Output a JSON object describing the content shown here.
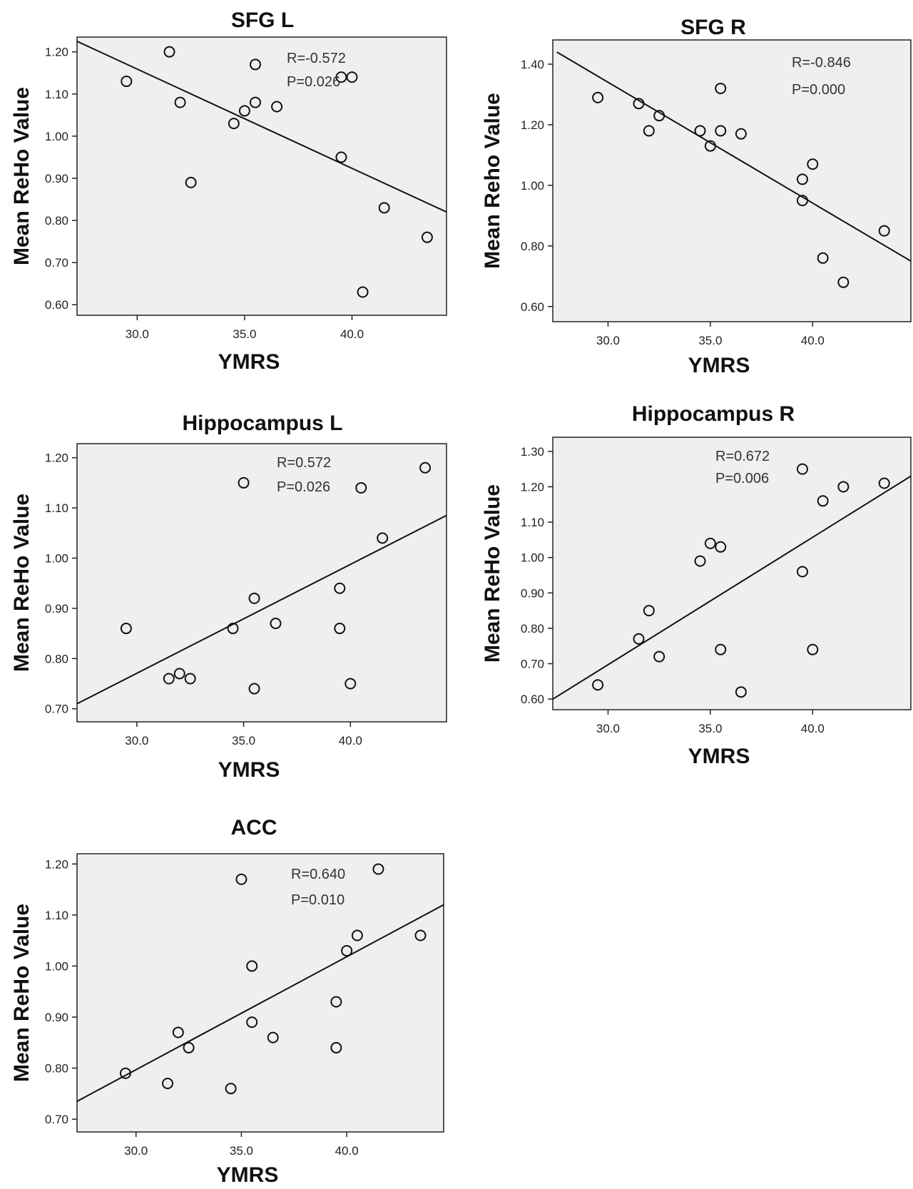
{
  "chart_data": [
    {
      "type": "scatter",
      "title": "SFG L",
      "xlabel": "YMRS",
      "ylabel": "Mean ReHo Value",
      "xlim": [
        27.2,
        44.4
      ],
      "ylim": [
        0.575,
        1.235
      ],
      "x_ticks": [
        "30.0",
        "35.0",
        "40.0"
      ],
      "y_ticks": [
        "0.60",
        "0.70",
        "0.80",
        "0.90",
        "1.00",
        "1.10",
        "1.20"
      ],
      "stat_r": "R=-0.572",
      "stat_p": "P=0.026",
      "fit_line": [
        [
          27.2,
          1.225
        ],
        [
          44.4,
          0.82
        ]
      ],
      "points": [
        [
          29.5,
          1.13
        ],
        [
          31.5,
          1.2
        ],
        [
          32.0,
          1.08
        ],
        [
          32.5,
          0.89
        ],
        [
          34.5,
          1.03
        ],
        [
          35.0,
          1.06
        ],
        [
          35.5,
          1.17
        ],
        [
          35.5,
          1.08
        ],
        [
          36.5,
          1.07
        ],
        [
          39.5,
          1.14
        ],
        [
          40.0,
          1.14
        ],
        [
          39.5,
          0.95
        ],
        [
          41.5,
          0.83
        ],
        [
          40.5,
          0.63
        ],
        [
          43.5,
          0.76
        ]
      ]
    },
    {
      "type": "scatter",
      "title": "SFG R",
      "xlabel": "YMRS",
      "ylabel": "Mean Reho Value",
      "xlim": [
        27.3,
        44.8
      ],
      "ylim": [
        0.55,
        1.48
      ],
      "x_ticks": [
        "30.0",
        "35.0",
        "40.0"
      ],
      "y_ticks": [
        "0.60",
        "0.80",
        "1.00",
        "1.20",
        "1.40"
      ],
      "stat_r": "R=-0.846",
      "stat_p": "P=0.000",
      "fit_line": [
        [
          27.5,
          1.44
        ],
        [
          44.8,
          0.75
        ]
      ],
      "points": [
        [
          29.5,
          1.29
        ],
        [
          31.5,
          1.27
        ],
        [
          32.0,
          1.18
        ],
        [
          32.5,
          1.23
        ],
        [
          34.5,
          1.18
        ],
        [
          35.0,
          1.13
        ],
        [
          35.5,
          1.32
        ],
        [
          35.5,
          1.18
        ],
        [
          36.5,
          1.17
        ],
        [
          39.5,
          1.02
        ],
        [
          40.0,
          1.07
        ],
        [
          39.5,
          0.95
        ],
        [
          40.5,
          0.76
        ],
        [
          41.5,
          0.68
        ],
        [
          43.5,
          0.85
        ]
      ]
    },
    {
      "type": "scatter",
      "title": "Hippocampus L",
      "xlabel": "YMRS",
      "ylabel": "Mean ReHo Value",
      "xlim": [
        27.2,
        44.5
      ],
      "ylim": [
        0.674,
        1.228
      ],
      "x_ticks": [
        "30.0",
        "35.0",
        "40.0"
      ],
      "y_ticks": [
        "0.70",
        "0.80",
        "0.90",
        "1.00",
        "1.10",
        "1.20"
      ],
      "stat_r": "R=0.572",
      "stat_p": "P=0.026",
      "fit_line": [
        [
          27.2,
          0.71
        ],
        [
          44.5,
          1.085
        ]
      ],
      "points": [
        [
          29.5,
          0.86
        ],
        [
          31.5,
          0.76
        ],
        [
          32.0,
          0.77
        ],
        [
          32.5,
          0.76
        ],
        [
          34.5,
          0.86
        ],
        [
          35.0,
          1.15
        ],
        [
          35.5,
          0.92
        ],
        [
          35.5,
          0.74
        ],
        [
          36.5,
          0.87
        ],
        [
          39.5,
          0.94
        ],
        [
          39.5,
          0.86
        ],
        [
          40.0,
          0.75
        ],
        [
          40.5,
          1.14
        ],
        [
          41.5,
          1.04
        ],
        [
          43.5,
          1.18
        ]
      ]
    },
    {
      "type": "scatter",
      "title": "Hippocampus R",
      "xlabel": "YMRS",
      "ylabel": "Mean ReHo Value",
      "xlim": [
        27.3,
        44.8
      ],
      "ylim": [
        0.57,
        1.34
      ],
      "x_ticks": [
        "30.0",
        "35.0",
        "40.0"
      ],
      "y_ticks": [
        "0.60",
        "0.70",
        "0.80",
        "0.90",
        "1.00",
        "1.10",
        "1.20",
        "1.30"
      ],
      "stat_r": "R=0.672",
      "stat_p": "P=0.006",
      "fit_line": [
        [
          27.3,
          0.6
        ],
        [
          44.8,
          1.23
        ]
      ],
      "points": [
        [
          29.5,
          0.64
        ],
        [
          31.5,
          0.77
        ],
        [
          32.0,
          0.85
        ],
        [
          32.5,
          0.72
        ],
        [
          34.5,
          0.99
        ],
        [
          35.0,
          1.04
        ],
        [
          35.5,
          1.03
        ],
        [
          35.5,
          0.74
        ],
        [
          36.5,
          0.62
        ],
        [
          39.5,
          1.25
        ],
        [
          39.5,
          0.96
        ],
        [
          40.0,
          0.74
        ],
        [
          40.5,
          1.16
        ],
        [
          41.5,
          1.2
        ],
        [
          43.5,
          1.21
        ]
      ]
    },
    {
      "type": "scatter",
      "title": "ACC",
      "xlabel": "YMRS",
      "ylabel": "Mean ReHo Value",
      "xlim": [
        27.2,
        44.6
      ],
      "ylim": [
        0.675,
        1.22
      ],
      "x_ticks": [
        "30.0",
        "35.0",
        "40.0"
      ],
      "y_ticks": [
        "0.70",
        "0.80",
        "0.90",
        "1.00",
        "1.10",
        "1.20"
      ],
      "stat_r": "R=0.640",
      "stat_p": "P=0.010",
      "fit_line": [
        [
          27.2,
          0.735
        ],
        [
          44.6,
          1.12
        ]
      ],
      "points": [
        [
          29.5,
          0.79
        ],
        [
          31.5,
          0.77
        ],
        [
          32.0,
          0.87
        ],
        [
          32.5,
          0.84
        ],
        [
          34.5,
          0.76
        ],
        [
          35.0,
          1.17
        ],
        [
          35.5,
          1.0
        ],
        [
          35.5,
          0.89
        ],
        [
          36.5,
          0.86
        ],
        [
          39.5,
          0.93
        ],
        [
          39.5,
          0.84
        ],
        [
          40.0,
          1.03
        ],
        [
          40.5,
          1.06
        ],
        [
          41.5,
          1.19
        ],
        [
          43.5,
          1.06
        ]
      ]
    }
  ]
}
